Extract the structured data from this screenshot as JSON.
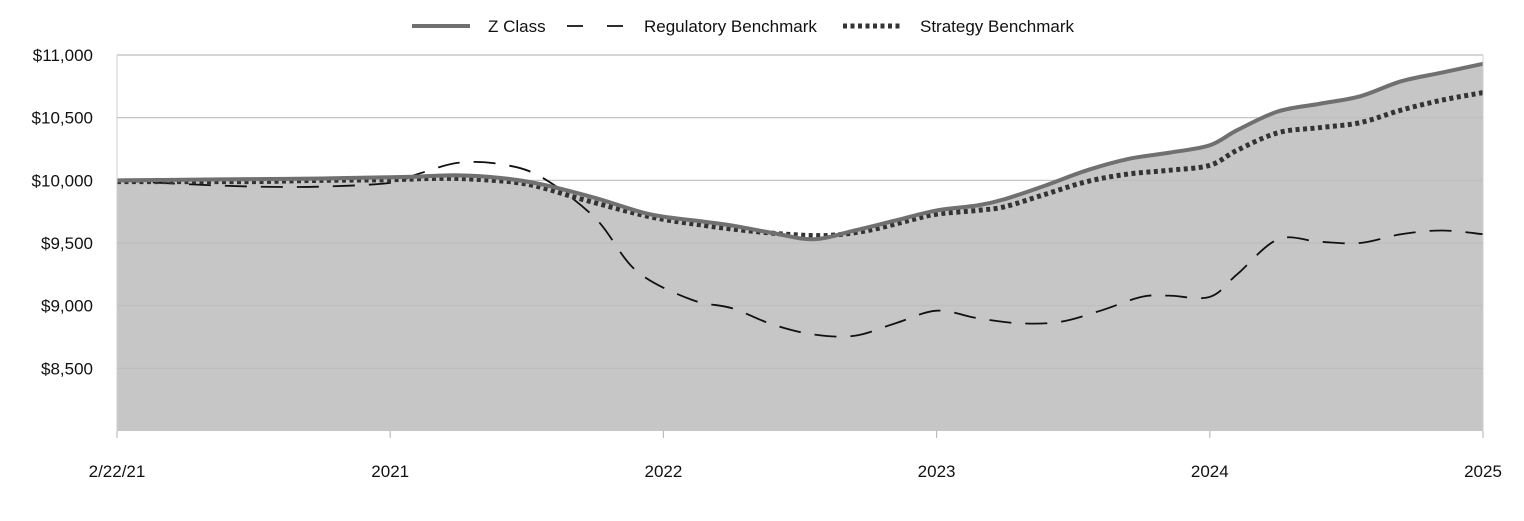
{
  "chart_data": {
    "type": "area",
    "title": "",
    "xlabel": "",
    "ylabel": "",
    "x_ticks": [
      "2/22/21",
      "2021",
      "2022",
      "2023",
      "2024",
      "2025"
    ],
    "x_tick_positions": [
      0,
      1,
      2,
      3,
      4,
      5
    ],
    "y_ticks": [
      8500,
      9000,
      9500,
      10000,
      10500,
      11000
    ],
    "y_tick_labels": [
      "$8,500",
      "$9,000",
      "$9,500",
      "$10,000",
      "$10,500",
      "$11,000"
    ],
    "ylim": [
      8000,
      11000
    ],
    "xlim": [
      0,
      5
    ],
    "grid": true,
    "legend_position": "top-center",
    "series": [
      {
        "name": "Z Class",
        "style": "solid",
        "color": "#707070",
        "fill": "#c6c6c6",
        "points": [
          [
            0.0,
            10000
          ],
          [
            0.25,
            10005
          ],
          [
            0.5,
            10010
          ],
          [
            0.75,
            10015
          ],
          [
            1.0,
            10025
          ],
          [
            1.1,
            10030
          ],
          [
            1.25,
            10040
          ],
          [
            1.4,
            10020
          ],
          [
            1.55,
            9970
          ],
          [
            1.75,
            9860
          ],
          [
            1.95,
            9730
          ],
          [
            2.15,
            9670
          ],
          [
            2.25,
            9640
          ],
          [
            2.4,
            9580
          ],
          [
            2.55,
            9530
          ],
          [
            2.7,
            9600
          ],
          [
            2.85,
            9680
          ],
          [
            3.0,
            9760
          ],
          [
            3.15,
            9800
          ],
          [
            3.25,
            9850
          ],
          [
            3.4,
            9960
          ],
          [
            3.55,
            10080
          ],
          [
            3.7,
            10170
          ],
          [
            3.85,
            10220
          ],
          [
            4.0,
            10280
          ],
          [
            4.1,
            10400
          ],
          [
            4.25,
            10550
          ],
          [
            4.4,
            10610
          ],
          [
            4.55,
            10670
          ],
          [
            4.7,
            10790
          ],
          [
            4.85,
            10860
          ],
          [
            5.0,
            10930
          ]
        ]
      },
      {
        "name": "Regulatory Benchmark",
        "style": "dashed",
        "color": "#111111",
        "points": [
          [
            0.0,
            10000
          ],
          [
            0.25,
            9970
          ],
          [
            0.5,
            9950
          ],
          [
            0.75,
            9950
          ],
          [
            1.0,
            9980
          ],
          [
            1.1,
            10050
          ],
          [
            1.25,
            10140
          ],
          [
            1.4,
            10130
          ],
          [
            1.55,
            10030
          ],
          [
            1.75,
            9700
          ],
          [
            1.9,
            9280
          ],
          [
            2.1,
            9050
          ],
          [
            2.25,
            8980
          ],
          [
            2.4,
            8850
          ],
          [
            2.55,
            8770
          ],
          [
            2.7,
            8760
          ],
          [
            2.85,
            8860
          ],
          [
            3.0,
            8960
          ],
          [
            3.15,
            8900
          ],
          [
            3.3,
            8860
          ],
          [
            3.45,
            8870
          ],
          [
            3.6,
            8960
          ],
          [
            3.75,
            9070
          ],
          [
            3.85,
            9080
          ],
          [
            4.0,
            9070
          ],
          [
            4.1,
            9250
          ],
          [
            4.25,
            9530
          ],
          [
            4.4,
            9510
          ],
          [
            4.55,
            9500
          ],
          [
            4.7,
            9570
          ],
          [
            4.85,
            9600
          ],
          [
            5.0,
            9570
          ]
        ]
      },
      {
        "name": "Strategy Benchmark",
        "style": "dotted",
        "color": "#333333",
        "points": [
          [
            0.0,
            9990
          ],
          [
            0.25,
            9990
          ],
          [
            0.5,
            9990
          ],
          [
            0.75,
            10000
          ],
          [
            1.0,
            10005
          ],
          [
            1.15,
            10015
          ],
          [
            1.3,
            10010
          ],
          [
            1.5,
            9970
          ],
          [
            1.7,
            9850
          ],
          [
            1.95,
            9710
          ],
          [
            2.15,
            9640
          ],
          [
            2.3,
            9600
          ],
          [
            2.45,
            9570
          ],
          [
            2.6,
            9560
          ],
          [
            2.75,
            9600
          ],
          [
            2.9,
            9680
          ],
          [
            3.0,
            9730
          ],
          [
            3.15,
            9760
          ],
          [
            3.25,
            9790
          ],
          [
            3.4,
            9890
          ],
          [
            3.55,
            9990
          ],
          [
            3.7,
            10050
          ],
          [
            3.85,
            10080
          ],
          [
            4.0,
            10120
          ],
          [
            4.1,
            10240
          ],
          [
            4.25,
            10380
          ],
          [
            4.4,
            10420
          ],
          [
            4.55,
            10460
          ],
          [
            4.7,
            10560
          ],
          [
            4.85,
            10640
          ],
          [
            5.0,
            10700
          ]
        ]
      }
    ]
  }
}
